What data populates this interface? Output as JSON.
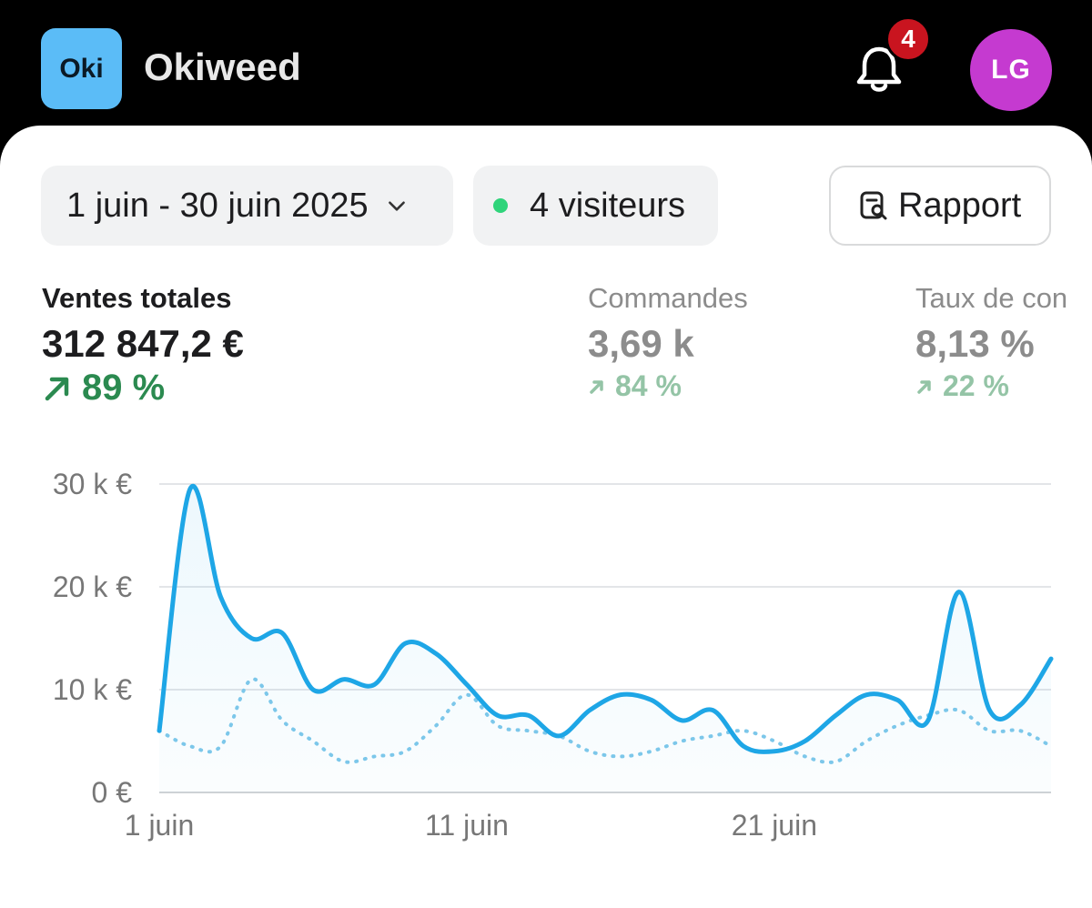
{
  "app": {
    "logo_text": "Oki",
    "name": "Okiweed"
  },
  "header": {
    "notifications_count": "4",
    "avatar_initials": "LG"
  },
  "filters": {
    "date_range": "1 juin - 30 juin 2025",
    "visitors": "4 visiteurs",
    "report_label": "Rapport"
  },
  "metrics": [
    {
      "label": "Ventes totales",
      "value": "312 847,2 €",
      "delta": "89 %"
    },
    {
      "label": "Commandes",
      "value": "3,69 k",
      "delta": "84 %"
    },
    {
      "label": "Taux de con",
      "value": "8,13 %",
      "delta": "22 %"
    }
  ],
  "colors": {
    "accent": "#1ea6e6",
    "positive": "#2b8a50",
    "avatar": "#c53ad0",
    "logo": "#5bbcf7",
    "badge": "#c9141f",
    "visitor_dot": "#2fd47a"
  },
  "chart_data": {
    "type": "line",
    "x": [
      1,
      2,
      3,
      4,
      5,
      6,
      7,
      8,
      9,
      10,
      11,
      12,
      13,
      14,
      15,
      16,
      17,
      18,
      19,
      20,
      21,
      22,
      23,
      24,
      25,
      26,
      27,
      28,
      29,
      30
    ],
    "series": [
      {
        "values": [
          6,
          29.5,
          19,
          15,
          15.5,
          10,
          11,
          10.5,
          14.5,
          13.5,
          10.5,
          7.5,
          7.5,
          5.5,
          8,
          9.5,
          9,
          7,
          8,
          4.5,
          4,
          5,
          7.5,
          9.5,
          9,
          7,
          19.5,
          8,
          8.5,
          13
        ]
      },
      {
        "values": [
          6,
          4.5,
          4.5,
          11,
          7,
          5,
          3,
          3.5,
          4,
          6.5,
          9.5,
          6.5,
          6,
          5.5,
          4,
          3.5,
          4,
          5,
          5.5,
          6,
          5,
          3.5,
          3,
          5,
          6.5,
          7.5,
          8,
          6,
          6,
          4.5
        ]
      }
    ],
    "x_ticks": [
      "1 juin",
      "11 juin",
      "21 juin"
    ],
    "y_ticks": [
      "0 €",
      "10 k €",
      "20 k €",
      "30 k €"
    ],
    "ylim": [
      0,
      30
    ],
    "grid": true
  }
}
